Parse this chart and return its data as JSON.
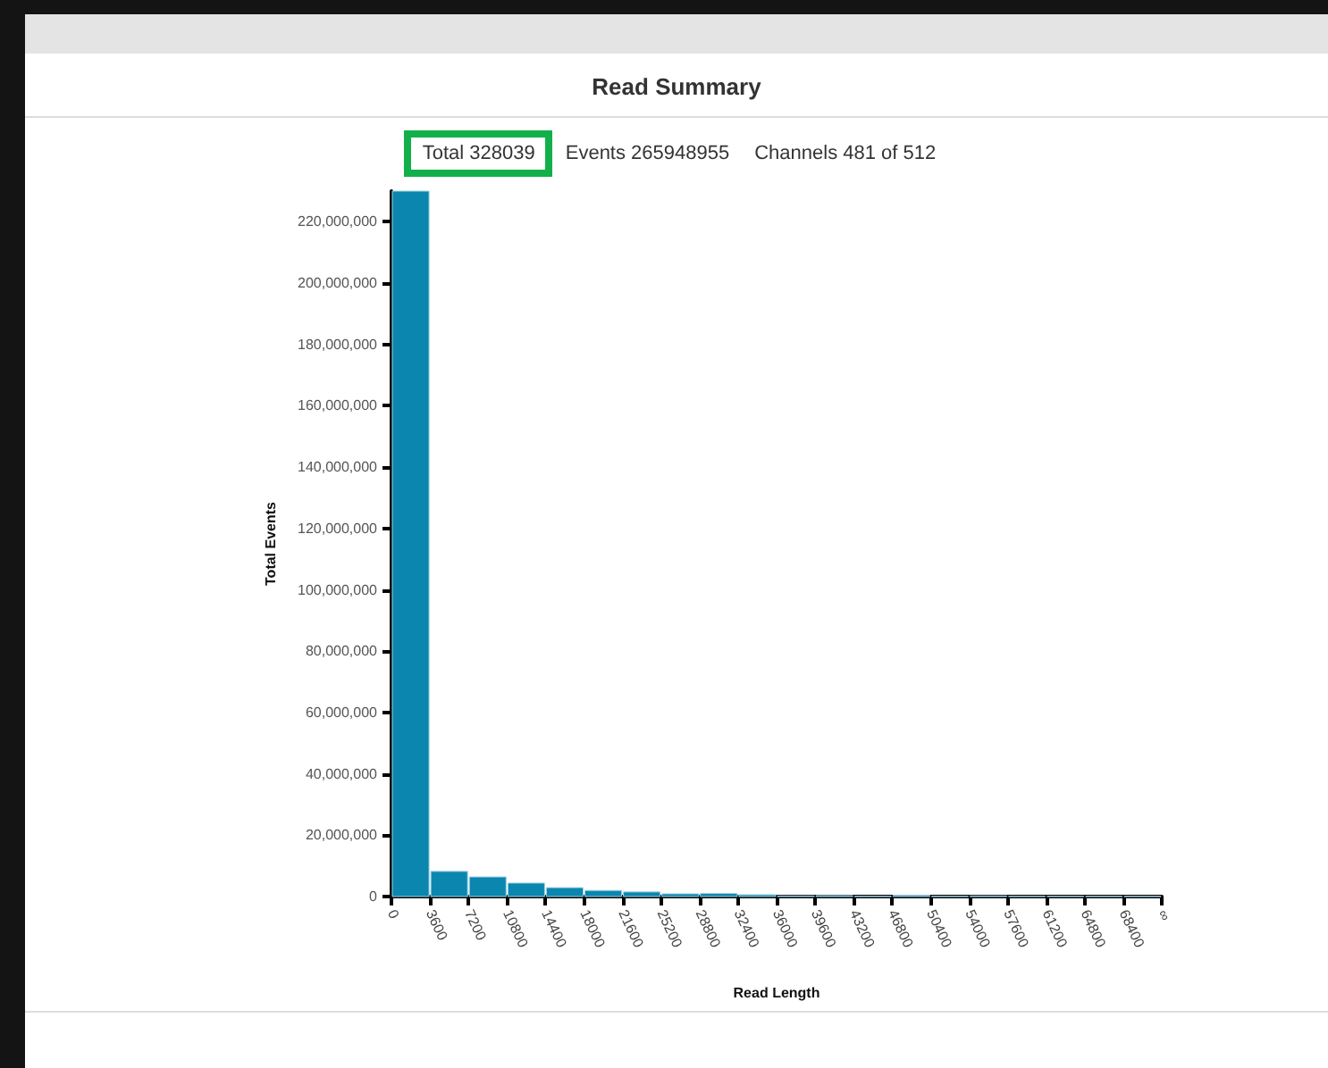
{
  "chart_data": {
    "type": "histogram",
    "title": "Read Summary",
    "annotations": [
      "Total 328039",
      "Events 265948955",
      "Channels 481 of 512"
    ],
    "xlabel": "Read Length",
    "ylabel": "Total Events",
    "color": "#0b86ae",
    "bins": [
      0,
      3600,
      7200,
      10800,
      14400,
      18000,
      21600,
      25200,
      28800,
      32400,
      36000,
      39600,
      43200,
      46800,
      50400,
      54000,
      57600,
      61200,
      64800,
      68400,
      72000
    ],
    "values": [
      230000000,
      8200000,
      6400000,
      4400000,
      2900000,
      2000000,
      1500000,
      900000,
      1000000,
      600000,
      200000,
      300000,
      100000,
      400000,
      100000,
      200000,
      100000,
      100000,
      100000,
      100000
    ],
    "xlim": [
      0,
      72000
    ],
    "xticks": [
      0,
      3600,
      7200,
      10800,
      14400,
      18000,
      21600,
      25200,
      28800,
      32400,
      36000,
      39600,
      43200,
      46800,
      50400,
      54000,
      57600,
      61200,
      64800,
      68400,
      {
        "value": 72000,
        "label": "∞"
      }
    ],
    "ylim": [
      0,
      230000000
    ],
    "yticks": [
      0,
      {
        "value": 20000000,
        "label": "20,000,000"
      },
      {
        "value": 40000000,
        "label": "40,000,000"
      },
      {
        "value": 60000000,
        "label": "60,000,000"
      },
      {
        "value": 80000000,
        "label": "80,000,000"
      },
      {
        "value": 100000000,
        "label": "100,000,000"
      },
      {
        "value": 120000000,
        "label": "120,000,000"
      },
      {
        "value": 140000000,
        "label": "140,000,000"
      },
      {
        "value": 160000000,
        "label": "160,000,000"
      },
      {
        "value": 180000000,
        "label": "180,000,000"
      },
      {
        "value": 200000000,
        "label": "200,000,000"
      },
      {
        "value": 220000000,
        "label": "220,000,000"
      }
    ],
    "grid": false
  }
}
